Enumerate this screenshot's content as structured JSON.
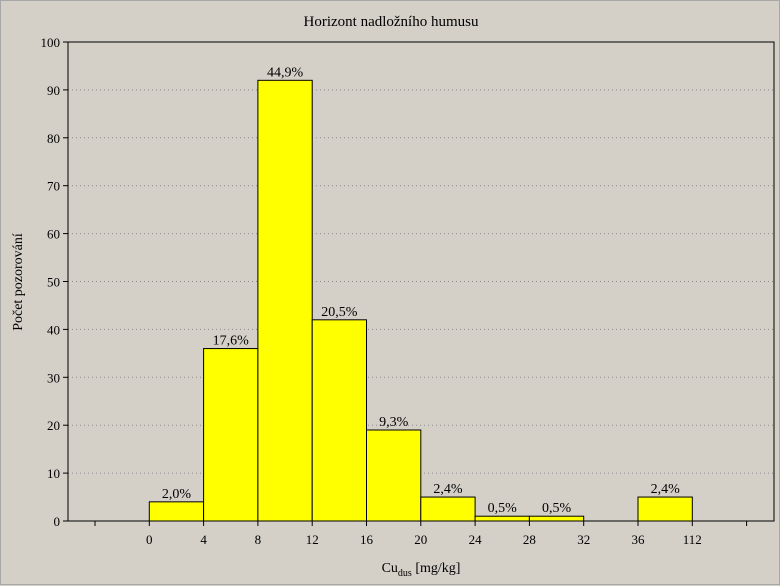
{
  "chart_data": {
    "type": "bar",
    "title": "Horizont nadložního humusu",
    "xlabel_main": "Cu",
    "xlabel_sub": "dus",
    "xlabel_unit": " [mg/kg]",
    "ylabel": "Počet pozorování",
    "ylim": [
      0,
      100
    ],
    "yticks": [
      0,
      10,
      20,
      30,
      40,
      50,
      60,
      70,
      80,
      90,
      100
    ],
    "x_tick_labels": [
      "0",
      "4",
      "8",
      "12",
      "16",
      "20",
      "24",
      "28",
      "32",
      "36",
      "112"
    ],
    "categories": [
      "0-4",
      "4-8",
      "8-12",
      "12-16",
      "16-20",
      "20-24",
      "24-28",
      "28-32",
      "32-36",
      "36-112"
    ],
    "values": [
      4,
      36,
      92,
      42,
      19,
      5,
      1,
      1,
      0,
      5
    ],
    "data_labels": [
      "2,0%",
      "17,6%",
      "44,9%",
      "20,5%",
      "9,3%",
      "2,4%",
      "0,5%",
      "0,5%",
      "",
      "2,4%"
    ],
    "grid": true,
    "colors": {
      "bar": "#ffff00",
      "background": "#d4d0c8",
      "plot": "#d4d0c8"
    }
  }
}
